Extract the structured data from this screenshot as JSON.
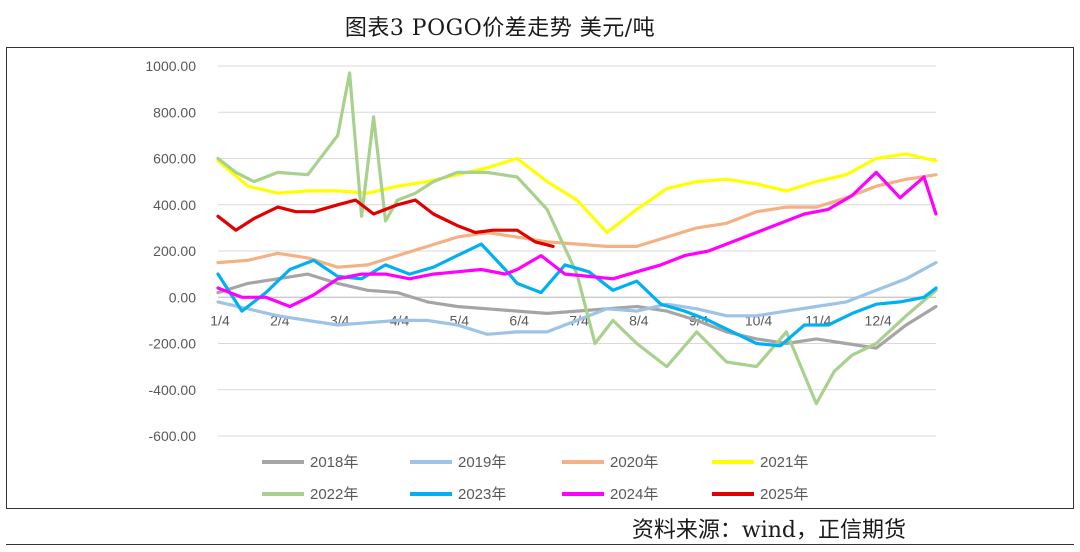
{
  "title": "图表3  POGO价差走势    美元/吨",
  "source": "资料来源：wind，正信期货",
  "chart_data": {
    "type": "line",
    "ylim": [
      -600,
      1000
    ],
    "y_ticks": [
      "1000.00",
      "800.00",
      "600.00",
      "400.00",
      "200.00",
      "0.00",
      "-200.00",
      "-400.00",
      "-600.00"
    ],
    "y_tick_values": [
      1000,
      800,
      600,
      400,
      200,
      0,
      -200,
      -400,
      -600
    ],
    "x_ticks": [
      "1/4",
      "2/4",
      "3/4",
      "4/4",
      "5/4",
      "6/4",
      "7/4",
      "8/4",
      "9/4",
      "10/4",
      "11/4",
      "12/4"
    ],
    "x_range": [
      0,
      12
    ],
    "grid": true,
    "legend_position": "bottom",
    "series": [
      {
        "name": "2018年",
        "color": "#a5a5a5",
        "x": [
          0,
          0.5,
          1,
          1.5,
          2,
          2.5,
          3,
          3.5,
          4,
          4.5,
          5,
          5.5,
          6,
          6.5,
          7,
          7.5,
          8,
          8.5,
          9,
          9.5,
          10,
          10.5,
          11,
          11.5,
          12
        ],
        "y": [
          20,
          60,
          80,
          100,
          60,
          30,
          20,
          -20,
          -40,
          -50,
          -60,
          -70,
          -60,
          -50,
          -40,
          -60,
          -100,
          -150,
          -180,
          -200,
          -180,
          -200,
          -220,
          -120,
          -40
        ]
      },
      {
        "name": "2019年",
        "color": "#9dc3e6",
        "x": [
          0,
          0.5,
          1,
          1.5,
          2,
          2.5,
          3,
          3.5,
          4,
          4.5,
          5,
          5.5,
          6,
          6.5,
          7,
          7.5,
          8,
          8.5,
          9,
          9.5,
          10,
          10.5,
          11,
          11.5,
          12
        ],
        "y": [
          -20,
          -50,
          -80,
          -100,
          -120,
          -110,
          -100,
          -100,
          -120,
          -160,
          -150,
          -150,
          -100,
          -50,
          -60,
          -30,
          -50,
          -80,
          -80,
          -60,
          -40,
          -20,
          30,
          80,
          150
        ]
      },
      {
        "name": "2020年",
        "color": "#f4b183",
        "x": [
          0,
          0.5,
          1,
          1.5,
          2,
          2.5,
          3,
          3.5,
          4,
          4.5,
          5,
          5.5,
          6,
          6.5,
          7,
          7.5,
          8,
          8.5,
          9,
          9.5,
          10,
          10.5,
          11,
          11.5,
          12
        ],
        "y": [
          150,
          160,
          190,
          170,
          130,
          140,
          180,
          220,
          260,
          280,
          260,
          240,
          230,
          220,
          220,
          260,
          300,
          320,
          370,
          390,
          390,
          430,
          480,
          510,
          530
        ]
      },
      {
        "name": "2021年",
        "color": "#ffff00",
        "x": [
          0,
          0.5,
          1,
          1.5,
          2,
          2.5,
          3,
          3.5,
          4,
          4.5,
          5,
          5.5,
          6,
          6.5,
          7,
          7.5,
          8,
          8.5,
          9,
          9.5,
          10,
          10.5,
          11,
          11.5,
          12
        ],
        "y": [
          590,
          480,
          450,
          460,
          460,
          450,
          480,
          500,
          530,
          560,
          600,
          500,
          420,
          280,
          380,
          470,
          500,
          510,
          490,
          460,
          500,
          530,
          600,
          620,
          590
        ]
      },
      {
        "name": "2022年",
        "color": "#a9d18e",
        "x": [
          0,
          0.3,
          0.6,
          1,
          1.5,
          2,
          2.2,
          2.4,
          2.6,
          2.8,
          3,
          3.3,
          3.6,
          4,
          4.5,
          5,
          5.5,
          6,
          6.3,
          6.6,
          7,
          7.5,
          8,
          8.5,
          9,
          9.5,
          10,
          10.3,
          10.6,
          11,
          11.5,
          12
        ],
        "y": [
          600,
          540,
          500,
          540,
          530,
          700,
          970,
          350,
          780,
          330,
          420,
          450,
          500,
          540,
          540,
          520,
          380,
          100,
          -200,
          -100,
          -200,
          -300,
          -150,
          -280,
          -300,
          -150,
          -460,
          -320,
          -250,
          -200,
          -80,
          30
        ]
      },
      {
        "name": "2023年",
        "color": "#00b0f0",
        "x": [
          0,
          0.4,
          0.8,
          1.2,
          1.6,
          2,
          2.4,
          2.8,
          3.2,
          3.6,
          4,
          4.4,
          4.8,
          5,
          5.4,
          5.8,
          6.2,
          6.6,
          7,
          7.4,
          7.8,
          8.2,
          8.6,
          9,
          9.4,
          9.8,
          10.2,
          10.6,
          11,
          11.4,
          11.8,
          12
        ],
        "y": [
          100,
          -60,
          20,
          120,
          160,
          90,
          80,
          140,
          100,
          130,
          180,
          230,
          120,
          60,
          20,
          140,
          110,
          30,
          70,
          -30,
          -60,
          -100,
          -150,
          -200,
          -210,
          -120,
          -120,
          -70,
          -30,
          -20,
          0,
          40
        ]
      },
      {
        "name": "2024年",
        "color": "#ff00ff",
        "x": [
          0,
          0.4,
          0.8,
          1.2,
          1.6,
          2,
          2.4,
          2.8,
          3.2,
          3.6,
          4,
          4.4,
          4.8,
          5,
          5.4,
          5.8,
          6.2,
          6.6,
          7,
          7.4,
          7.8,
          8.2,
          8.6,
          9,
          9.4,
          9.8,
          10.2,
          10.6,
          11,
          11.4,
          11.8,
          12
        ],
        "y": [
          40,
          0,
          0,
          -40,
          10,
          80,
          100,
          100,
          80,
          100,
          110,
          120,
          100,
          120,
          180,
          100,
          90,
          80,
          110,
          140,
          180,
          200,
          240,
          280,
          320,
          360,
          380,
          440,
          540,
          430,
          520,
          360
        ]
      },
      {
        "name": "2025年",
        "color": "#e00000",
        "x": [
          0,
          0.3,
          0.6,
          1,
          1.3,
          1.6,
          2,
          2.3,
          2.6,
          3,
          3.3,
          3.6,
          4,
          4.3,
          4.6,
          5,
          5.3,
          5.6
        ],
        "y": [
          350,
          290,
          340,
          390,
          370,
          370,
          400,
          420,
          360,
          400,
          420,
          360,
          310,
          280,
          290,
          290,
          240,
          220
        ]
      }
    ]
  }
}
